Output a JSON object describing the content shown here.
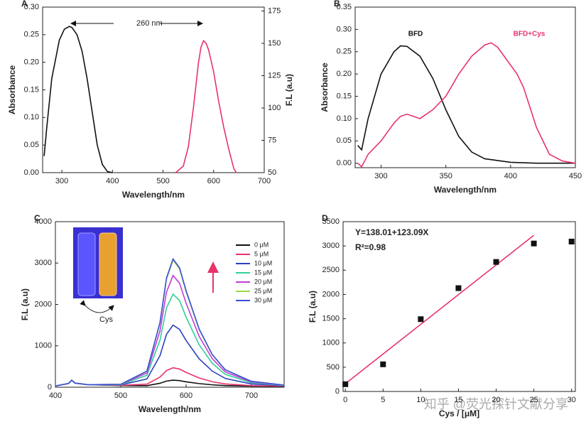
{
  "chart_data": [
    {
      "type": "line",
      "panel": "A",
      "xlabel": "Wavelength/nm",
      "ylabel": "Absorbance",
      "y2label": "F.L (a.u)",
      "xlim": [
        262,
        700
      ],
      "xticks": [
        300,
        400,
        500,
        600,
        700
      ],
      "ylim": [
        0,
        0.3
      ],
      "yticks": [
        {
          "value": 0,
          "label": "0.00"
        },
        {
          "value": 0.05,
          "label": "0.05"
        },
        {
          "value": 0.1,
          "label": "0.10"
        },
        {
          "value": 0.15,
          "label": "0.15"
        },
        {
          "value": 0.2,
          "label": "0.20"
        },
        {
          "value": 0.25,
          "label": "0.25"
        },
        {
          "value": 0.3,
          "label": "0.30"
        }
      ],
      "y2lim": [
        50,
        178
      ],
      "y2ticks": [
        50,
        75,
        100,
        125,
        150,
        175
      ],
      "annotations": [
        "260 nm"
      ],
      "series": [
        {
          "color": "#111111",
          "x": [
            265,
            270,
            280,
            295,
            305,
            315,
            320,
            330,
            340,
            350,
            360,
            370,
            380,
            390,
            400
          ],
          "values": [
            0.03,
            0.08,
            0.17,
            0.24,
            0.26,
            0.265,
            0.263,
            0.25,
            0.22,
            0.17,
            0.11,
            0.05,
            0.015,
            0.002,
            0
          ]
        },
        {
          "color": "#e8336b",
          "axis": "y2",
          "x": [
            525,
            540,
            550,
            560,
            570,
            575,
            580,
            585,
            590,
            600,
            610,
            620,
            630,
            640,
            645
          ],
          "values": [
            50,
            55,
            70,
            100,
            135,
            147,
            152,
            150,
            145,
            128,
            105,
            85,
            68,
            53,
            50
          ]
        }
      ]
    },
    {
      "type": "line",
      "panel": "B",
      "xlabel": "Wavelength/nm",
      "ylabel": "Absorbance",
      "xlim": [
        280,
        450
      ],
      "xticks": [
        300,
        350,
        400,
        450
      ],
      "ylim": [
        -0.01,
        0.35
      ],
      "yticks": [
        {
          "value": 0,
          "label": "0.00"
        },
        {
          "value": 0.05,
          "label": "0.05"
        },
        {
          "value": 0.1,
          "label": "0.10"
        },
        {
          "value": 0.15,
          "label": "0.15"
        },
        {
          "value": 0.2,
          "label": "0.20"
        },
        {
          "value": 0.25,
          "label": "0.25"
        },
        {
          "value": 0.3,
          "label": "0.30"
        },
        {
          "value": 0.35,
          "label": "0.35"
        }
      ],
      "series": [
        {
          "name": "BFD",
          "color": "#111111",
          "x": [
            282,
            285,
            290,
            300,
            310,
            315,
            320,
            330,
            340,
            350,
            360,
            370,
            380,
            400,
            420,
            450
          ],
          "values": [
            0.04,
            0.03,
            0.1,
            0.2,
            0.25,
            0.263,
            0.262,
            0.24,
            0.19,
            0.12,
            0.06,
            0.025,
            0.01,
            0.002,
            0,
            0
          ]
        },
        {
          "name": "BFD+Cys",
          "color": "#e8336b",
          "x": [
            282,
            285,
            290,
            300,
            310,
            315,
            320,
            325,
            330,
            340,
            350,
            360,
            370,
            380,
            385,
            390,
            400,
            405,
            410,
            420,
            430,
            440,
            450
          ],
          "values": [
            0,
            -0.008,
            0.02,
            0.05,
            0.09,
            0.105,
            0.11,
            0.105,
            0.1,
            0.12,
            0.15,
            0.2,
            0.24,
            0.265,
            0.27,
            0.26,
            0.22,
            0.2,
            0.17,
            0.08,
            0.02,
            0.005,
            0
          ]
        }
      ]
    },
    {
      "type": "line",
      "panel": "C",
      "xlabel": "Wavelength/nm",
      "ylabel": "F.L (a.u)",
      "legend": "upper right",
      "xlim": [
        400,
        750
      ],
      "xticks": [
        400,
        500,
        600,
        700
      ],
      "ylim": [
        0,
        4000
      ],
      "yticks": [
        0,
        1000,
        2000,
        3000,
        4000
      ],
      "annotations": [
        "Cys"
      ],
      "x": [
        400,
        420,
        425,
        430,
        450,
        500,
        540,
        560,
        570,
        580,
        590,
        600,
        620,
        640,
        660,
        700,
        750
      ],
      "series": [
        {
          "name": "0 μM",
          "color": "#111111",
          "values": [
            30,
            90,
            170,
            100,
            60,
            42,
            38,
            95,
            148,
            170,
            160,
            130,
            88,
            58,
            40,
            26,
            20
          ]
        },
        {
          "name": "5 μM",
          "color": "#e8336b",
          "values": [
            30,
            90,
            170,
            100,
            60,
            45,
            74,
            245,
            403,
            470,
            439,
            358,
            223,
            133,
            78,
            38,
            24
          ]
        },
        {
          "name": "10 μM",
          "color": "#2b3fbf",
          "values": [
            30,
            90,
            170,
            100,
            60,
            55,
            198,
            760,
            1278,
            1500,
            1396,
            1130,
            686,
            390,
            212,
            79,
            35
          ]
        },
        {
          "name": "15 μM",
          "color": "#2fcf9a",
          "values": [
            30,
            90,
            170,
            100,
            60,
            62,
            288,
            1135,
            1916,
            2250,
            2094,
            1693,
            1024,
            578,
            310,
            109,
            42
          ]
        },
        {
          "name": "20 μM",
          "color": "#c23dd6",
          "values": [
            30,
            90,
            170,
            100,
            60,
            67,
            342,
            1360,
            2298,
            2700,
            2512,
            2030,
            1226,
            690,
            368,
            127,
            47
          ]
        },
        {
          "name": "25 μM",
          "color": "#9fd64a",
          "values": [
            30,
            90,
            170,
            100,
            60,
            70,
            386,
            1545,
            2613,
            3070,
            2857,
            2308,
            1393,
            783,
            417,
            142,
            50
          ]
        },
        {
          "name": "30 μM",
          "color": "#3a4fd8",
          "values": [
            30,
            90,
            170,
            100,
            60,
            71,
            390,
            1560,
            2638,
            3100,
            2884,
            2330,
            1406,
            790,
            420,
            143,
            51
          ]
        }
      ]
    },
    {
      "type": "scatter",
      "panel": "D",
      "xlabel": "Cys / [μM]",
      "ylabel": "F.L (a.u)",
      "xlim": [
        -0.3,
        30.5
      ],
      "xticks": [
        0,
        5,
        10,
        15,
        20,
        25,
        30
      ],
      "ylim": [
        0,
        3500
      ],
      "yticks": [
        0,
        500,
        1000,
        1500,
        2000,
        2500,
        3000,
        3500
      ],
      "annotations": [
        "Y=138.01+123.09X",
        "R²=0.98"
      ],
      "color": "#111111",
      "x": [
        0,
        5,
        10,
        15,
        20,
        25,
        30
      ],
      "values": [
        150,
        560,
        1490,
        2130,
        2670,
        3050,
        3090
      ],
      "fit": {
        "color": "#e8336b",
        "x": [
          0,
          25
        ],
        "values": [
          160,
          3220
        ]
      }
    }
  ],
  "watermark": "知乎 @荧光探针文献分享"
}
